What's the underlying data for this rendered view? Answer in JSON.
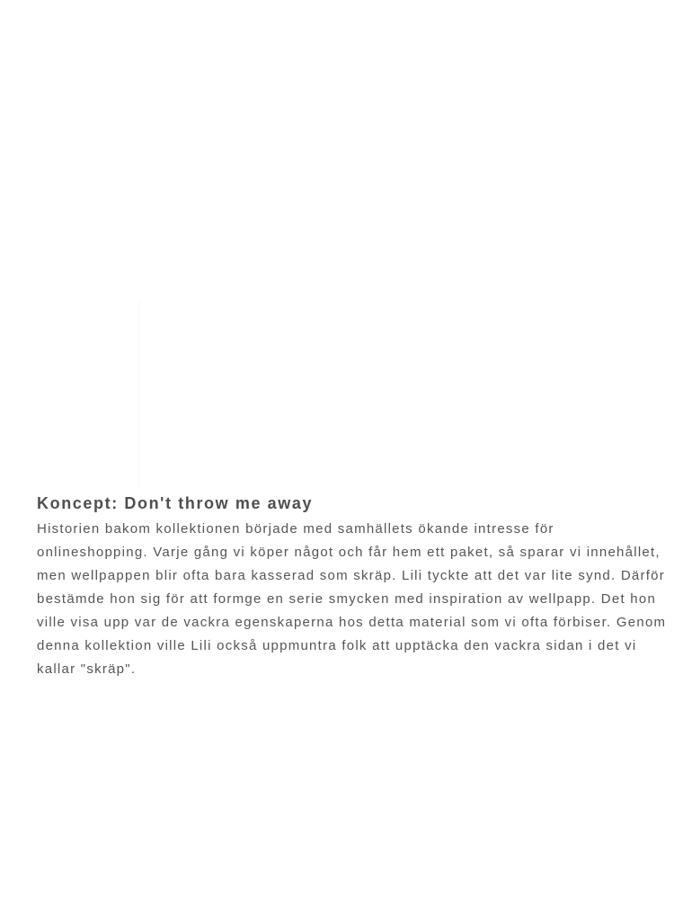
{
  "concept": {
    "heading": "Koncept: Don't throw me away",
    "lines": [
      "Historien bakom kollektionen började med samhällets ökande intresse för",
      "onlineshopping. Varje gång vi köper något och får hem ett paket, så sparar vi innehållet,",
      "men wellpappen blir ofta bara kasserad som skräp. Lili tyckte att det var lite synd. Därför",
      "bestämde hon sig för att formge en serie smycken med inspiration av wellpapp. Det hon",
      "ville visa upp var de vackra egenskaperna hos detta material som vi ofta förbiser. Genom",
      "denna kollektion ville Lili också uppmuntra folk att upptäcka den vackra sidan i det vi",
      "kallar \"skräp\"."
    ]
  }
}
